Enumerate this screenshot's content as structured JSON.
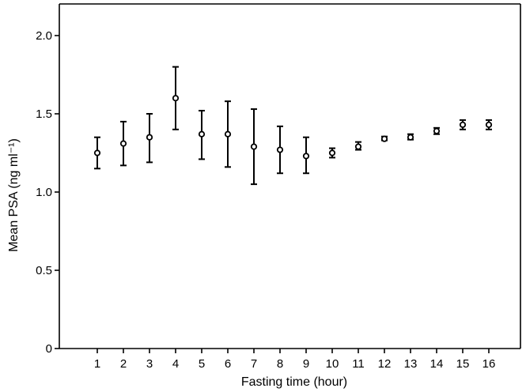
{
  "chart_data": {
    "type": "scatter",
    "title": "",
    "xlabel": "Fasting time (hour)",
    "ylabel": "Mean PSA (ng ml⁻¹)",
    "ylim": [
      0,
      2.0
    ],
    "xlim": [
      0,
      17
    ],
    "grid": false,
    "legend": "none",
    "x_ticks": [
      "1",
      "2",
      "3",
      "4",
      "5",
      "6",
      "7",
      "8",
      "9",
      "10",
      "11",
      "12",
      "13",
      "14",
      "15",
      "16"
    ],
    "y_ticks": [
      {
        "value": 0,
        "label": "0"
      },
      {
        "value": 0.5,
        "label": "0.5"
      },
      {
        "value": 1.0,
        "label": "1.0"
      },
      {
        "value": 1.5,
        "label": "1.5"
      },
      {
        "value": 2.0,
        "label": "2.0"
      }
    ],
    "points": [
      {
        "x": 1,
        "y": 1.25,
        "lower": 1.15,
        "upper": 1.35
      },
      {
        "x": 2,
        "y": 1.31,
        "lower": 1.17,
        "upper": 1.45
      },
      {
        "x": 3,
        "y": 1.35,
        "lower": 1.19,
        "upper": 1.5
      },
      {
        "x": 4,
        "y": 1.6,
        "lower": 1.4,
        "upper": 1.8
      },
      {
        "x": 5,
        "y": 1.37,
        "lower": 1.21,
        "upper": 1.52
      },
      {
        "x": 6,
        "y": 1.37,
        "lower": 1.16,
        "upper": 1.58
      },
      {
        "x": 7,
        "y": 1.29,
        "lower": 1.05,
        "upper": 1.53
      },
      {
        "x": 8,
        "y": 1.27,
        "lower": 1.12,
        "upper": 1.42
      },
      {
        "x": 9,
        "y": 1.23,
        "lower": 1.12,
        "upper": 1.35
      },
      {
        "x": 10,
        "y": 1.25,
        "lower": 1.22,
        "upper": 1.28
      },
      {
        "x": 11,
        "y": 1.29,
        "lower": 1.27,
        "upper": 1.32
      },
      {
        "x": 12,
        "y": 1.34,
        "lower": 1.33,
        "upper": 1.355
      },
      {
        "x": 13,
        "y": 1.35,
        "lower": 1.335,
        "upper": 1.37
      },
      {
        "x": 14,
        "y": 1.39,
        "lower": 1.37,
        "upper": 1.41
      },
      {
        "x": 15,
        "y": 1.43,
        "lower": 1.4,
        "upper": 1.46
      },
      {
        "x": 16,
        "y": 1.43,
        "lower": 1.4,
        "upper": 1.46
      }
    ],
    "colors": {
      "marker": "#000000",
      "axis": "#000000",
      "background": "#ffffff"
    }
  }
}
